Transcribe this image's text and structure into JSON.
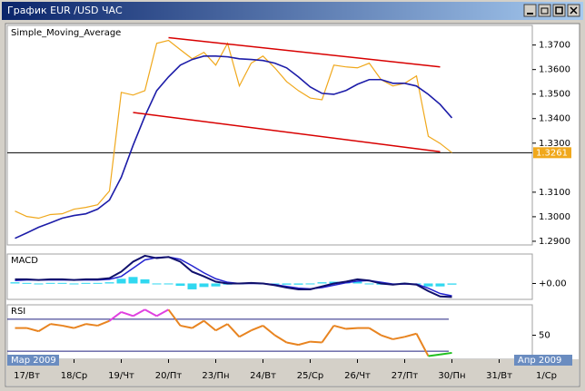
{
  "window_title": "График EUR /USD  ЧАС",
  "chart_data": {
    "type": "line",
    "title": "Simple_Moving_Average",
    "categories": [
      null,
      "17/Вт",
      null,
      null,
      null,
      "18/Ср",
      null,
      null,
      null,
      "19/Чт",
      null,
      null,
      null,
      "20/Пт",
      null,
      null,
      null,
      "23/Пн",
      null,
      null,
      null,
      "24/Вт",
      null,
      null,
      null,
      "25/Ср",
      null,
      null,
      null,
      "26/Чт",
      null,
      null,
      null,
      "27/Пт",
      null,
      null,
      null,
      "30/Пн",
      null,
      null,
      null,
      "31/Вт",
      null,
      null,
      null,
      "1/Ср"
    ],
    "period_labels": [
      "Мар 2009",
      "Апр 2009"
    ],
    "ylim": [
      1.2885,
      1.378
    ],
    "yticks": [
      {
        "value": 1.37,
        "label": "1.3700"
      },
      {
        "value": 1.36,
        "label": "1.3600"
      },
      {
        "value": 1.35,
        "label": "1.3500"
      },
      {
        "value": 1.34,
        "label": "1.3400"
      },
      {
        "value": 1.33,
        "label": "1.3300"
      },
      {
        "value": 1.31,
        "label": "1.3100"
      },
      {
        "value": 1.3,
        "label": "1.3000"
      },
      {
        "value": 1.29,
        "label": "1.2900"
      }
    ],
    "current_price": 1.3261,
    "series": [
      {
        "name": "EUR/USD",
        "color": "#f0a81c",
        "values": [
          1.3023,
          1.3001,
          1.2994,
          1.3009,
          1.3012,
          1.3031,
          1.3038,
          1.3049,
          1.3105,
          1.3507,
          1.3496,
          1.3514,
          1.3707,
          1.3719,
          1.3681,
          1.3644,
          1.367,
          1.3618,
          1.3707,
          1.3533,
          1.3626,
          1.3655,
          1.3607,
          1.3551,
          1.3514,
          1.3484,
          1.3477,
          1.3618,
          1.3611,
          1.3607,
          1.3626,
          1.3559,
          1.3533,
          1.3544,
          1.3574,
          1.3328,
          1.3299,
          1.3261,
          null,
          null,
          null,
          null,
          null,
          null,
          null,
          null
        ]
      },
      {
        "name": "Simple_Moving_Average",
        "color": "#1c1ca8",
        "values": [
          1.2912,
          1.2934,
          1.2957,
          1.2975,
          1.2994,
          1.3005,
          1.3012,
          1.3031,
          1.3068,
          1.3161,
          1.3291,
          1.341,
          1.3514,
          1.357,
          1.3618,
          1.3641,
          1.3655,
          1.3655,
          1.3652,
          1.3644,
          1.3641,
          1.3637,
          1.3626,
          1.3607,
          1.357,
          1.3529,
          1.3503,
          1.3499,
          1.3514,
          1.354,
          1.3559,
          1.3559,
          1.3544,
          1.3544,
          1.3533,
          1.3499,
          1.3458,
          1.3403,
          null,
          null,
          null,
          null,
          null,
          null,
          null,
          null
        ]
      }
    ],
    "trendlines": [
      {
        "color": "#d80000",
        "start": [
          13,
          1.373
        ],
        "end": [
          36,
          1.3611
        ]
      },
      {
        "color": "#d80000",
        "start": [
          10,
          1.3425
        ],
        "end": [
          36,
          1.3265
        ]
      }
    ],
    "macd": {
      "title": "MACD",
      "ylim": [
        -0.0027,
        0.005
      ],
      "yticks": [
        {
          "value": 0,
          "label": "+0.00"
        }
      ],
      "main": {
        "color": "#10106c",
        "values": [
          0.0007,
          0.0007,
          0.0006,
          0.0007,
          0.0007,
          0.0006,
          0.0007,
          0.0007,
          0.0009,
          0.002,
          0.0037,
          0.0047,
          0.0043,
          0.0045,
          0.0037,
          0.002,
          0.0012,
          0.0003,
          0.0,
          0.0,
          0.0001,
          0.0,
          -0.0003,
          -0.0007,
          -0.001,
          -0.001,
          -0.0005,
          0.0,
          0.0003,
          0.0007,
          0.0005,
          0.0,
          -0.0002,
          0.0,
          -0.0002,
          -0.0013,
          -0.0022,
          -0.0023,
          null,
          null,
          null,
          null,
          null,
          null,
          null,
          null
        ]
      },
      "signal": {
        "color": "#2424d0",
        "values": [
          0.0005,
          0.0006,
          0.0006,
          0.0006,
          0.0006,
          0.0006,
          0.0006,
          0.0006,
          0.0007,
          0.0012,
          0.0026,
          0.004,
          0.0044,
          0.0045,
          0.0041,
          0.003,
          0.0018,
          0.0008,
          0.0002,
          0.0,
          0.0,
          0.0,
          -0.0002,
          -0.0005,
          -0.0008,
          -0.0009,
          -0.0007,
          -0.0003,
          0.0001,
          0.0004,
          0.0005,
          0.0002,
          -0.0001,
          -0.0001,
          -0.0001,
          -0.0008,
          -0.0017,
          -0.0021,
          null,
          null,
          null,
          null,
          null,
          null,
          null,
          null
        ]
      },
      "histogram": {
        "color": "#30d8f0",
        "values": [
          0.0002,
          0.0001,
          0.0,
          0.0001,
          0.0001,
          0.0,
          0.0001,
          0.0001,
          0.0002,
          0.0008,
          0.0011,
          0.0007,
          -0.0001,
          0.0,
          -0.0004,
          -0.001,
          -0.0006,
          -0.0005,
          -0.0002,
          0.0,
          0.0001,
          0.0,
          -0.0001,
          -0.0002,
          -0.0002,
          -0.0001,
          0.0002,
          0.0003,
          0.0002,
          0.0003,
          0.0,
          -0.0002,
          -0.0001,
          0.0001,
          -0.0001,
          -0.0005,
          -0.0005,
          -0.0002,
          null,
          null,
          null,
          null,
          null,
          null,
          null,
          null
        ]
      }
    },
    "rsi": {
      "title": "RSI",
      "ylim": [
        20,
        88
      ],
      "yticks": [
        50
      ],
      "levels": [
        30,
        70
      ],
      "color": "#e88420",
      "overbought_color": "#e040e0",
      "oversold_color": "#20c020",
      "values": [
        59,
        59,
        55,
        64,
        62,
        59,
        64,
        62,
        68,
        79,
        74,
        82,
        74,
        82,
        62,
        59,
        68,
        56,
        64,
        48,
        56,
        62,
        50,
        41,
        38,
        42,
        41,
        62,
        58,
        59,
        59,
        50,
        45,
        48,
        52,
        24,
        26,
        28,
        null,
        null,
        null,
        null,
        null,
        null,
        null,
        null
      ]
    }
  }
}
